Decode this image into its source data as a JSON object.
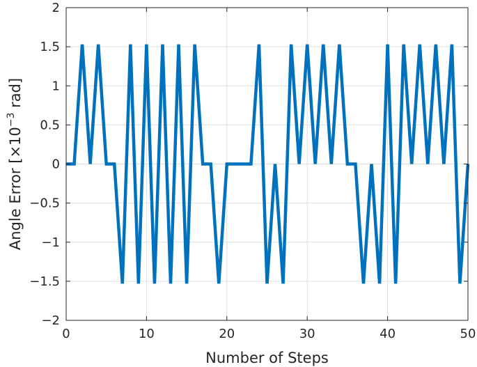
{
  "chart_data": {
    "type": "line",
    "xlabel": "Number of Steps",
    "ylabel": {
      "prefix": "Angle Error [",
      "times": "×",
      "base": "10",
      "exponent": "−3",
      "suffix": " rad]"
    },
    "xlim": [
      0,
      50
    ],
    "ylim": [
      -2,
      2
    ],
    "xticks": [
      0,
      10,
      20,
      30,
      40,
      50
    ],
    "xtick_labels": [
      "0",
      "10",
      "20",
      "30",
      "40",
      "50"
    ],
    "yticks": [
      2,
      1.5,
      1,
      0.5,
      0,
      -0.5,
      -1,
      -1.5,
      -2
    ],
    "ytick_labels": [
      "2",
      "1.5",
      "1",
      "0.5",
      "0",
      "−0.5",
      "−1",
      "−1.5",
      "−2"
    ],
    "grid": true,
    "line_color": "#0072BD",
    "series": [
      {
        "x": [
          0,
          1,
          2,
          3,
          4,
          5,
          6,
          7,
          8,
          9,
          10,
          11,
          12,
          13,
          14,
          15,
          16,
          17,
          18,
          19,
          20,
          21,
          22,
          23,
          24,
          25,
          26,
          27,
          28,
          29,
          30,
          31,
          32,
          33,
          34,
          35,
          36,
          37,
          38,
          39,
          40,
          41,
          42,
          43,
          44,
          45,
          46,
          47,
          48,
          49,
          50
        ],
        "values": [
          0,
          0,
          1.53,
          0,
          1.53,
          0,
          0,
          -1.53,
          1.53,
          -1.53,
          1.53,
          -1.53,
          1.53,
          -1.53,
          1.53,
          -1.53,
          1.53,
          0,
          0,
          -1.53,
          0,
          0,
          0,
          0,
          1.53,
          -1.53,
          0,
          -1.53,
          1.53,
          0,
          1.53,
          0,
          1.53,
          0,
          1.53,
          0,
          0,
          -1.53,
          0,
          -1.53,
          1.53,
          -1.53,
          1.53,
          0,
          1.53,
          0,
          1.53,
          0,
          1.53,
          -1.53,
          0
        ]
      }
    ]
  }
}
